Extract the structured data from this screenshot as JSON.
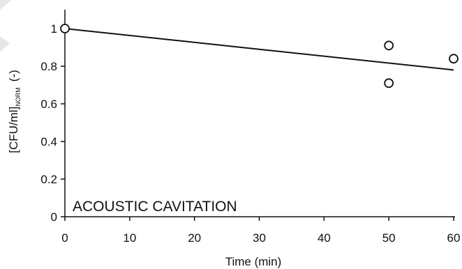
{
  "colors": {
    "ink": "#111111",
    "marker_fill": "#ffffff",
    "decor": "#e6e6e6"
  },
  "chart_data": {
    "type": "scatter",
    "annotation": "ACOUSTIC CAVITATION",
    "xlabel": "Time (min)",
    "ylabel_main": "[CFU/ml]",
    "ylabel_sub": "NORM",
    "ylabel_unit": "(-)",
    "xlim": [
      0,
      60
    ],
    "ylim": [
      0,
      1.1
    ],
    "x_ticks": [
      0,
      10,
      20,
      30,
      40,
      50,
      60
    ],
    "x_tick_labels": [
      "0",
      "10",
      "20",
      "30",
      "40",
      "50",
      "60"
    ],
    "y_ticks": [
      0,
      0.2,
      0.4,
      0.6,
      0.8,
      1
    ],
    "y_tick_labels": [
      "0",
      "0.2",
      "0.4",
      "0.6",
      "0.8",
      "1"
    ],
    "grid": false,
    "series": [
      {
        "marker": "open-circle",
        "points": [
          {
            "x": 0,
            "y": 1.0
          },
          {
            "x": 50,
            "y": 0.91
          },
          {
            "x": 50,
            "y": 0.71
          },
          {
            "x": 60,
            "y": 0.84
          }
        ]
      }
    ],
    "trend_line": {
      "x": [
        0,
        60
      ],
      "y": [
        1.0,
        0.78
      ]
    }
  }
}
